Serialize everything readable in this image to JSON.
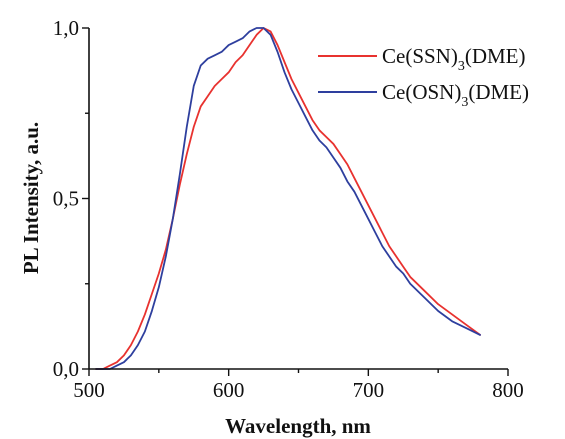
{
  "chart_data": {
    "type": "line",
    "xlabel": "Wavelength, nm",
    "ylabel": "PL Intensity, a.u.",
    "xlim": [
      500,
      800
    ],
    "ylim": [
      0,
      1.0
    ],
    "xticks": [
      500,
      600,
      700,
      800
    ],
    "xtick_labels": [
      "500",
      "600",
      "700",
      "800"
    ],
    "yticks": [
      0,
      0.5,
      1.0
    ],
    "ytick_labels": [
      "0,0",
      "0,5",
      "1,0"
    ],
    "grid": false,
    "legend_position": "top-right",
    "series": [
      {
        "name": "Ce(SSN)3(DME)",
        "name_parts": {
          "base": "Ce(SSN)",
          "sub": "3",
          "suffix": "(DME)"
        },
        "color": "#e8322f",
        "x": [
          505,
          510,
          515,
          520,
          525,
          530,
          535,
          540,
          545,
          550,
          555,
          560,
          565,
          570,
          575,
          580,
          585,
          590,
          595,
          600,
          605,
          610,
          615,
          620,
          625,
          630,
          635,
          640,
          645,
          650,
          655,
          660,
          665,
          670,
          675,
          680,
          685,
          690,
          695,
          700,
          705,
          710,
          715,
          720,
          725,
          730,
          740,
          750,
          760,
          770,
          780
        ],
        "y": [
          0.0,
          0.0,
          0.01,
          0.02,
          0.04,
          0.07,
          0.11,
          0.16,
          0.22,
          0.28,
          0.35,
          0.44,
          0.54,
          0.63,
          0.71,
          0.77,
          0.8,
          0.83,
          0.85,
          0.87,
          0.9,
          0.92,
          0.95,
          0.98,
          1.0,
          0.99,
          0.95,
          0.9,
          0.85,
          0.81,
          0.77,
          0.73,
          0.7,
          0.68,
          0.66,
          0.63,
          0.6,
          0.56,
          0.52,
          0.48,
          0.44,
          0.4,
          0.36,
          0.33,
          0.3,
          0.27,
          0.23,
          0.19,
          0.16,
          0.13,
          0.1
        ]
      },
      {
        "name": "Ce(OSN)3(DME)",
        "name_parts": {
          "base": "Ce(OSN)",
          "sub": "3",
          "suffix": "(DME)"
        },
        "color": "#2e3f9e",
        "x": [
          505,
          510,
          515,
          520,
          525,
          530,
          535,
          540,
          545,
          550,
          555,
          560,
          565,
          570,
          575,
          580,
          585,
          590,
          595,
          600,
          605,
          610,
          615,
          620,
          625,
          630,
          635,
          640,
          645,
          650,
          655,
          660,
          665,
          670,
          675,
          680,
          685,
          690,
          695,
          700,
          705,
          710,
          715,
          720,
          725,
          730,
          740,
          750,
          760,
          770,
          780
        ],
        "y": [
          0.0,
          0.0,
          0.0,
          0.01,
          0.02,
          0.04,
          0.07,
          0.11,
          0.17,
          0.24,
          0.33,
          0.44,
          0.57,
          0.71,
          0.83,
          0.89,
          0.91,
          0.92,
          0.93,
          0.95,
          0.96,
          0.97,
          0.99,
          1.0,
          1.0,
          0.98,
          0.93,
          0.87,
          0.82,
          0.78,
          0.74,
          0.7,
          0.67,
          0.65,
          0.62,
          0.59,
          0.55,
          0.52,
          0.48,
          0.44,
          0.4,
          0.36,
          0.33,
          0.3,
          0.28,
          0.25,
          0.21,
          0.17,
          0.14,
          0.12,
          0.1
        ]
      }
    ]
  }
}
